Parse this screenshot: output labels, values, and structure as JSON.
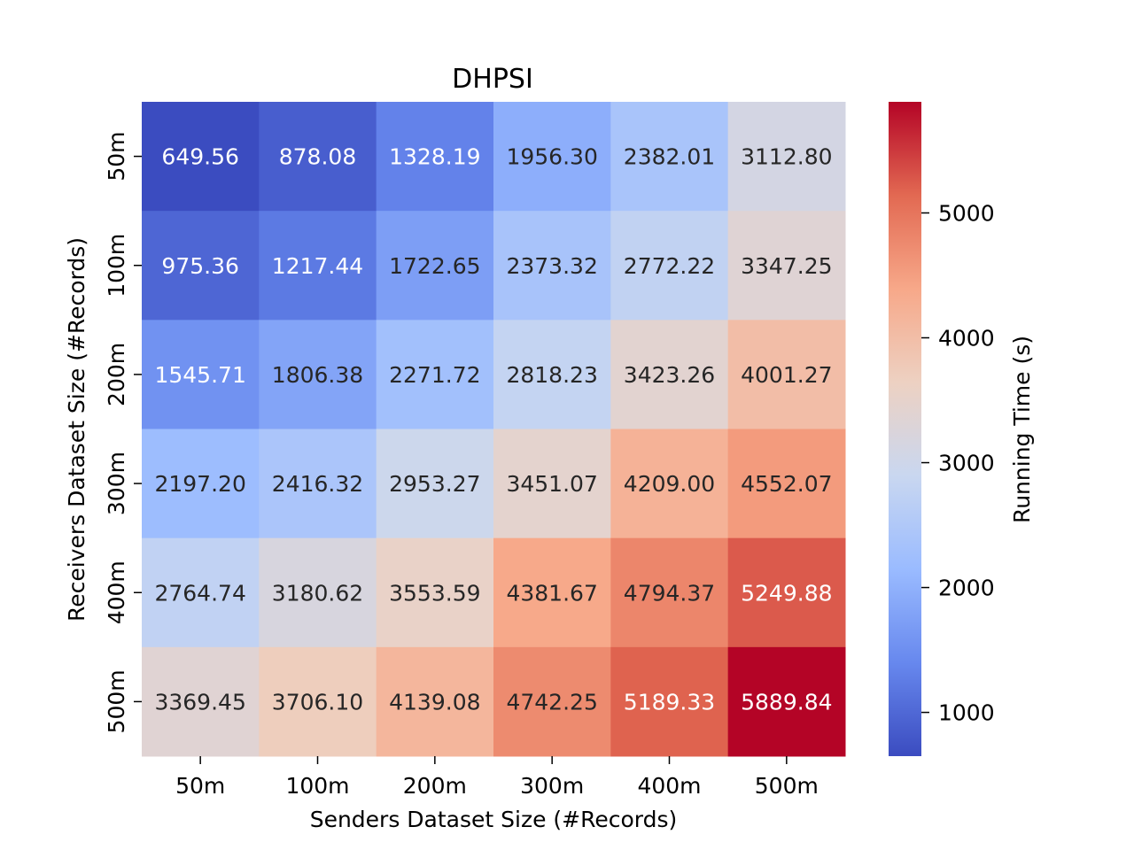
{
  "chart_data": {
    "type": "heatmap",
    "title": "DHPSI",
    "xlabel": "Senders Dataset Size (#Records)",
    "ylabel": "Receivers Dataset Size (#Records)",
    "x_categories": [
      "50m",
      "100m",
      "200m",
      "300m",
      "400m",
      "500m"
    ],
    "y_categories": [
      "50m",
      "100m",
      "200m",
      "300m",
      "400m",
      "500m"
    ],
    "values": [
      [
        649.56,
        878.08,
        1328.19,
        1956.3,
        2382.01,
        3112.8
      ],
      [
        975.36,
        1217.44,
        1722.65,
        2373.32,
        2772.22,
        3347.25
      ],
      [
        1545.71,
        1806.38,
        2271.72,
        2818.23,
        3423.26,
        4001.27
      ],
      [
        2197.2,
        2416.32,
        2953.27,
        3451.07,
        4209.0,
        4552.07
      ],
      [
        2764.74,
        3180.62,
        3553.59,
        4381.67,
        4794.37,
        5249.88
      ],
      [
        3369.45,
        3706.1,
        4139.08,
        4742.25,
        5189.33,
        5889.84
      ]
    ],
    "value_format": "2 decimals",
    "colorbar": {
      "label": "Running Time (s)",
      "ticks": [
        1000,
        2000,
        3000,
        4000,
        5000
      ],
      "range": [
        649.56,
        5889.84
      ],
      "colormap": "coolwarm",
      "colors": [
        "#3b4cc0",
        "#6788ee",
        "#9abbff",
        "#c9d7f0",
        "#edd1c2",
        "#f7a889",
        "#e26952",
        "#b40426"
      ]
    },
    "grid": false,
    "legend": "colorbar right"
  }
}
